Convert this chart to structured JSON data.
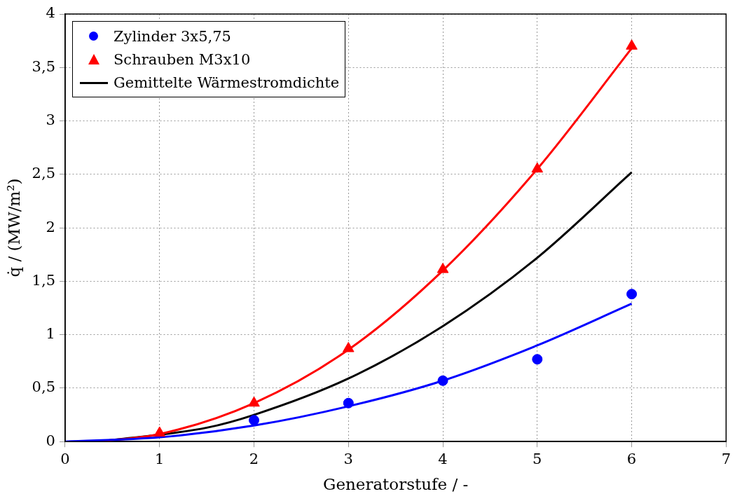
{
  "chart_data": {
    "type": "scatter",
    "xlabel": "Generatorstufe / -",
    "ylabel": "q̇ / (MW/m²)",
    "xlim": [
      0,
      7
    ],
    "xticks": [
      0,
      1,
      2,
      3,
      4,
      5,
      6,
      7
    ],
    "ylim": [
      0,
      4
    ],
    "yticks": [
      0,
      {
        "value": 0.5,
        "label": "0,5"
      },
      1,
      {
        "value": 1.5,
        "label": "1,5"
      },
      2,
      {
        "value": 2.5,
        "label": "2,5"
      },
      3,
      {
        "value": 3.5,
        "label": "3,5"
      },
      4
    ],
    "grid": true,
    "legend": "top left",
    "series": [
      {
        "type": "line",
        "color": "#0000ff",
        "x": [
          0,
          1,
          2,
          3,
          4,
          5,
          6
        ],
        "values": [
          0,
          0.04,
          0.15,
          0.33,
          0.57,
          0.9,
          1.29
        ],
        "line_style": "solid",
        "marker": "none"
      },
      {
        "type": "line",
        "color": "#ff0000",
        "x": [
          0.35,
          1,
          2,
          3,
          4,
          5,
          6
        ],
        "values": [
          0,
          0.07,
          0.36,
          0.86,
          1.6,
          2.55,
          3.68
        ],
        "line_style": "solid",
        "marker": "none"
      },
      {
        "type": "scatter",
        "name": "Zylinder 3x5,75",
        "color": "#0000ff",
        "marker": "circle",
        "x": [
          2,
          3,
          4,
          5,
          6
        ],
        "values": [
          0.2,
          0.36,
          0.57,
          0.77,
          1.38
        ]
      },
      {
        "type": "scatter",
        "name": "Schrauben M3x10",
        "color": "#ff0000",
        "marker": "triangle",
        "x": [
          1,
          2,
          3,
          4,
          5,
          6
        ],
        "values": [
          0.08,
          0.36,
          0.87,
          1.61,
          2.55,
          3.7
        ]
      },
      {
        "type": "line",
        "name": "Gemittelte Wärmestromdichte",
        "color": "#000000",
        "x": [
          0.35,
          1.5,
          2,
          3,
          4,
          5,
          6
        ],
        "values": [
          0,
          0.13,
          0.25,
          0.59,
          1.08,
          1.72,
          2.52
        ],
        "line_style": "solid",
        "marker": "none"
      }
    ]
  }
}
